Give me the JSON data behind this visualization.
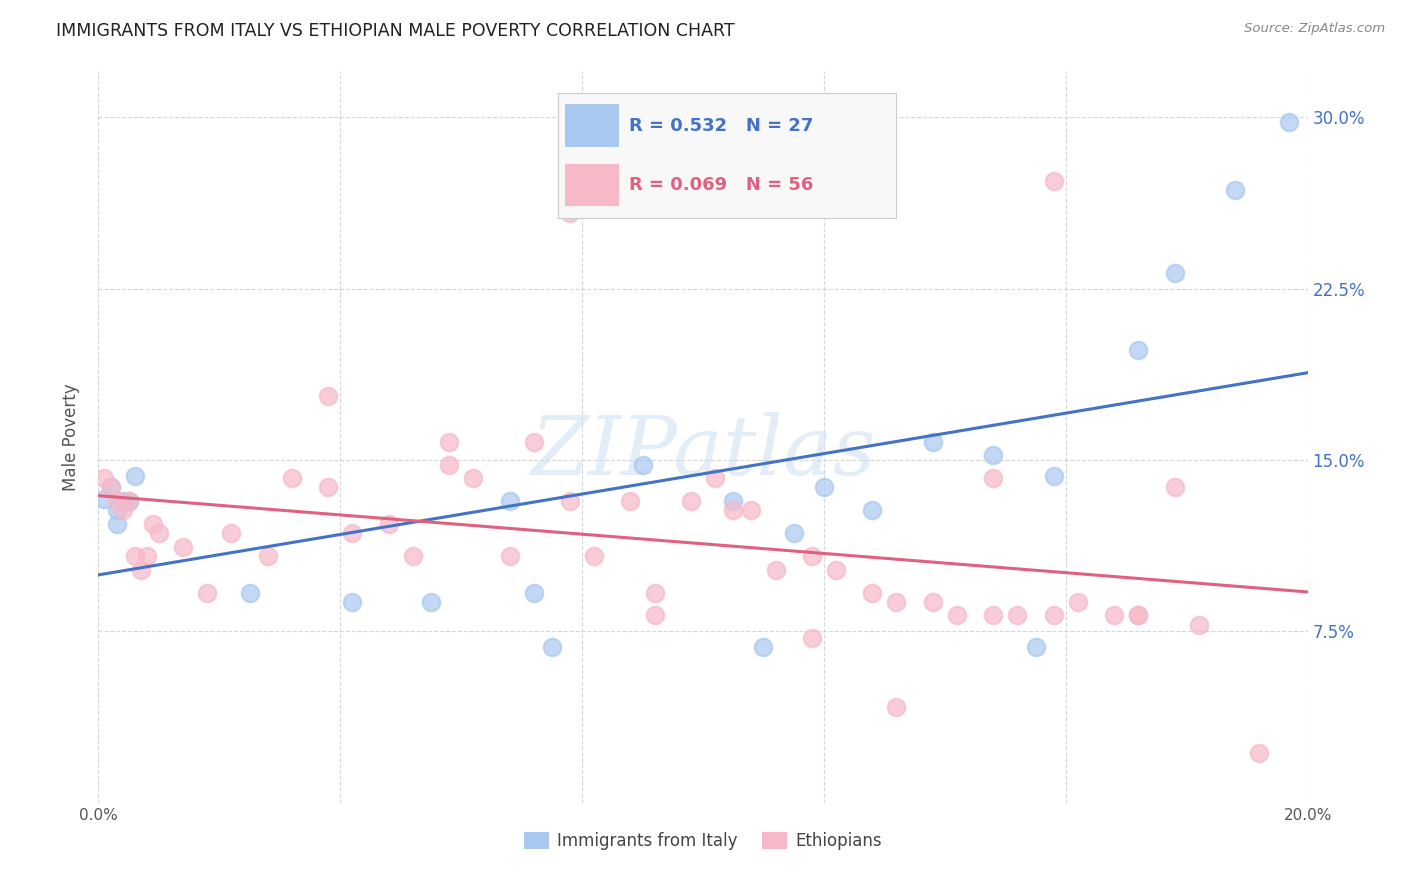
{
  "title": "IMMIGRANTS FROM ITALY VS ETHIOPIAN MALE POVERTY CORRELATION CHART",
  "source": "Source: ZipAtlas.com",
  "ylabel": "Male Poverty",
  "legend_label1": "Immigrants from Italy",
  "legend_label2": "Ethiopians",
  "R1": "0.532",
  "N1": "27",
  "R2": "0.069",
  "N2": "56",
  "xmin": 0.0,
  "xmax": 0.2,
  "ymin": 0.0,
  "ymax": 0.32,
  "ytick_positions": [
    0.075,
    0.15,
    0.225,
    0.3
  ],
  "ytick_labels": [
    "7.5%",
    "15.0%",
    "22.5%",
    "30.0%"
  ],
  "xtick_positions": [
    0.0,
    0.04,
    0.08,
    0.12,
    0.16,
    0.2
  ],
  "xtick_labels": [
    "0.0%",
    "",
    "",
    "",
    "",
    "20.0%"
  ],
  "color_italy": "#a8c8f0",
  "color_ethiopia": "#f7b8c8",
  "line_color_italy": "#4472c4",
  "line_color_ethiopia": "#e06080",
  "watermark": "ZIPatlas",
  "italy_x": [
    0.001,
    0.002,
    0.003,
    0.003,
    0.004,
    0.005,
    0.006,
    0.025,
    0.042,
    0.055,
    0.068,
    0.072,
    0.075,
    0.09,
    0.105,
    0.11,
    0.115,
    0.12,
    0.128,
    0.138,
    0.148,
    0.155,
    0.158,
    0.172,
    0.178,
    0.188,
    0.197
  ],
  "italy_y": [
    0.133,
    0.138,
    0.122,
    0.128,
    0.132,
    0.132,
    0.143,
    0.092,
    0.088,
    0.088,
    0.132,
    0.092,
    0.068,
    0.148,
    0.132,
    0.068,
    0.118,
    0.138,
    0.128,
    0.158,
    0.152,
    0.068,
    0.143,
    0.198,
    0.232,
    0.268,
    0.298
  ],
  "ethiopia_x": [
    0.001,
    0.002,
    0.003,
    0.004,
    0.005,
    0.006,
    0.007,
    0.008,
    0.009,
    0.01,
    0.014,
    0.018,
    0.022,
    0.028,
    0.032,
    0.038,
    0.042,
    0.048,
    0.052,
    0.058,
    0.062,
    0.068,
    0.072,
    0.078,
    0.082,
    0.088,
    0.092,
    0.098,
    0.102,
    0.108,
    0.112,
    0.118,
    0.122,
    0.128,
    0.132,
    0.138,
    0.142,
    0.148,
    0.152,
    0.158,
    0.162,
    0.168,
    0.172,
    0.178,
    0.038,
    0.058,
    0.078,
    0.092,
    0.105,
    0.118,
    0.132,
    0.148,
    0.158,
    0.172,
    0.182,
    0.192
  ],
  "ethiopia_y": [
    0.142,
    0.138,
    0.132,
    0.128,
    0.132,
    0.108,
    0.102,
    0.108,
    0.122,
    0.118,
    0.112,
    0.092,
    0.118,
    0.108,
    0.142,
    0.138,
    0.118,
    0.122,
    0.108,
    0.158,
    0.142,
    0.108,
    0.158,
    0.132,
    0.108,
    0.132,
    0.092,
    0.132,
    0.142,
    0.128,
    0.102,
    0.108,
    0.102,
    0.092,
    0.088,
    0.088,
    0.082,
    0.142,
    0.082,
    0.082,
    0.088,
    0.082,
    0.082,
    0.138,
    0.178,
    0.148,
    0.258,
    0.082,
    0.128,
    0.072,
    0.042,
    0.082,
    0.272,
    0.082,
    0.078,
    0.022
  ]
}
